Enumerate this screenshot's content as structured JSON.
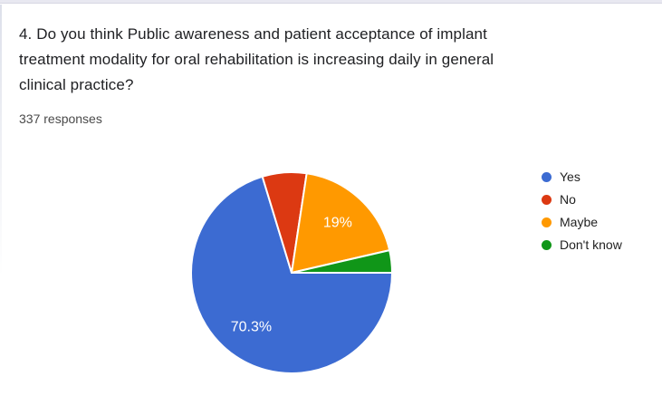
{
  "question": {
    "title_lines": [
      "4. Do you think Public awareness and patient acceptance of implant",
      "treatment modality for oral rehabilitation is increasing daily in general",
      "clinical practice?"
    ],
    "responses_count": "337 responses"
  },
  "chart_data": {
    "type": "pie",
    "title": "",
    "legend_position": "right",
    "start_angle_deg": 90,
    "direction": "clockwise",
    "label_radius_fraction": 0.675,
    "separator_color": "#ffffff",
    "categories": [
      "Yes",
      "No",
      "Maybe",
      "Don't know"
    ],
    "values_pct": [
      70.3,
      7.1,
      19.0,
      3.6
    ],
    "slice_labels": [
      "70.3%",
      "",
      "19%",
      ""
    ],
    "colors": [
      "#3c6bd2",
      "#dc3912",
      "#ff9900",
      "#109618"
    ]
  },
  "frame": {
    "strip_color": "#e8e8f1"
  }
}
